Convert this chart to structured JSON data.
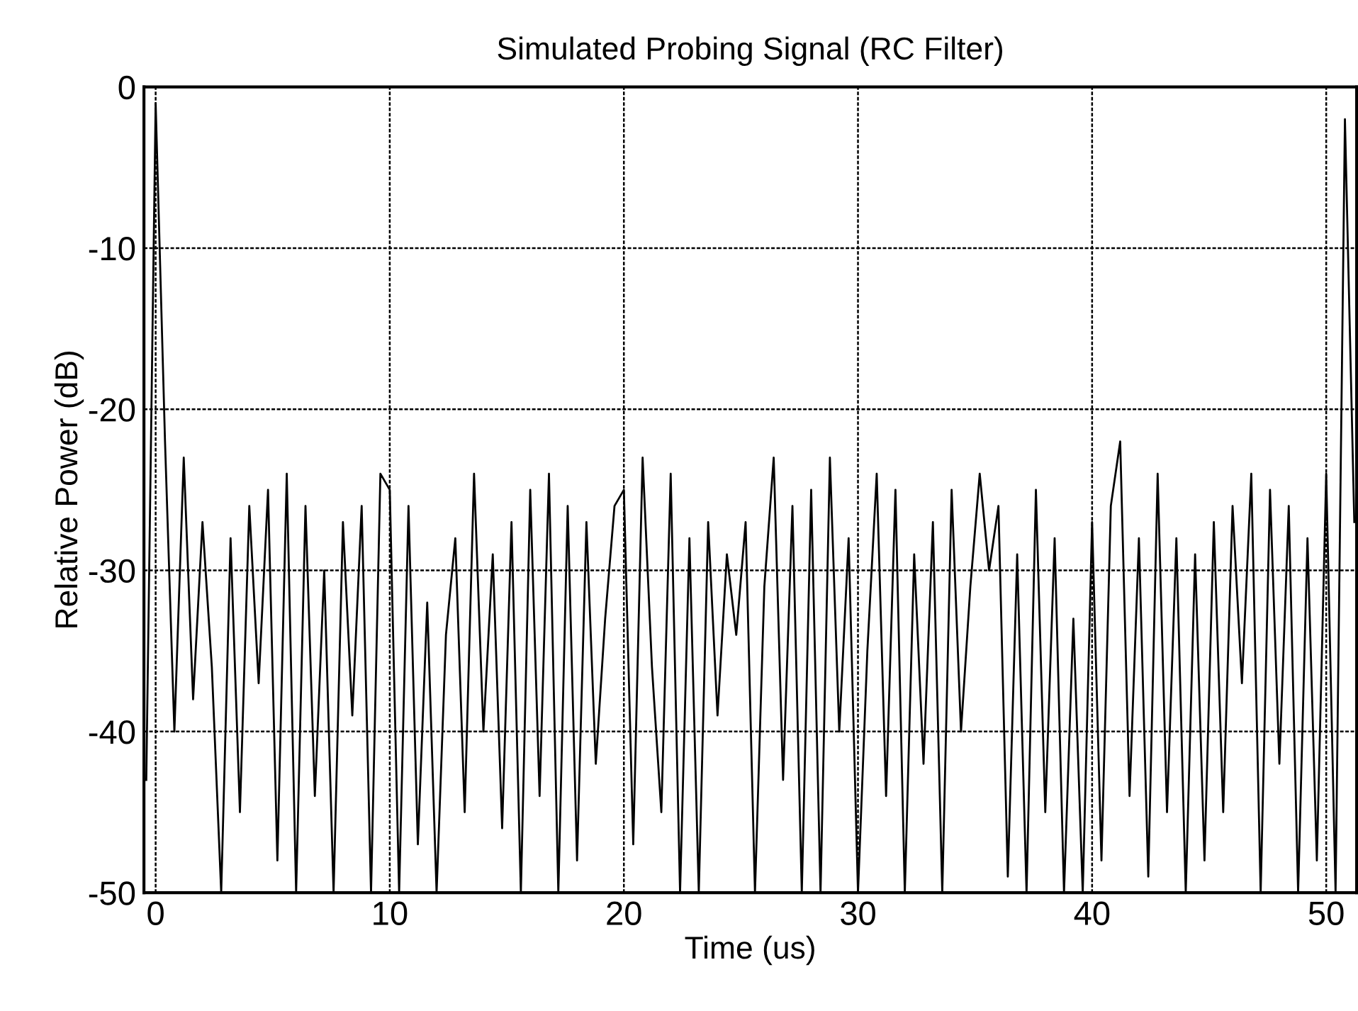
{
  "chart_data": {
    "type": "line",
    "title": "Simulated Probing Signal (RC Filter)",
    "xlabel": "Time (us)",
    "ylabel": "Relative Power (dB)",
    "xlim": [
      -0.5,
      51.3
    ],
    "ylim": [
      -50,
      0
    ],
    "xticks": [
      0,
      10,
      20,
      30,
      40,
      50
    ],
    "yticks": [
      -50,
      -40,
      -30,
      -20,
      -10,
      0
    ],
    "grid": true,
    "series": [
      {
        "color": "#000000",
        "x": [
          -0.4,
          0.0,
          0.4,
          0.8,
          1.2,
          1.6,
          2.0,
          2.4,
          2.8,
          3.2,
          3.6,
          4.0,
          4.4,
          4.8,
          5.2,
          5.6,
          6.0,
          6.4,
          6.8,
          7.2,
          7.6,
          8.0,
          8.4,
          8.8,
          9.2,
          9.6,
          10.0,
          10.4,
          10.8,
          11.2,
          11.6,
          12.0,
          12.4,
          12.8,
          13.2,
          13.6,
          14.0,
          14.4,
          14.8,
          15.2,
          15.6,
          16.0,
          16.4,
          16.8,
          17.2,
          17.6,
          18.0,
          18.4,
          18.8,
          19.2,
          19.6,
          20.0,
          20.4,
          20.8,
          21.2,
          21.6,
          22.0,
          22.4,
          22.8,
          23.2,
          23.6,
          24.0,
          24.4,
          24.8,
          25.2,
          25.6,
          26.0,
          26.4,
          26.8,
          27.2,
          27.6,
          28.0,
          28.4,
          28.8,
          29.2,
          29.6,
          30.0,
          30.4,
          30.8,
          31.2,
          31.6,
          32.0,
          32.4,
          32.8,
          33.2,
          33.6,
          34.0,
          34.4,
          34.8,
          35.2,
          35.6,
          36.0,
          36.4,
          36.8,
          37.2,
          37.6,
          38.0,
          38.4,
          38.8,
          39.2,
          39.6,
          40.0,
          40.4,
          40.8,
          41.2,
          41.6,
          42.0,
          42.4,
          42.8,
          43.2,
          43.6,
          44.0,
          44.4,
          44.8,
          45.2,
          45.6,
          46.0,
          46.4,
          46.8,
          47.2,
          47.6,
          48.0,
          48.4,
          48.8,
          49.2,
          49.6,
          50.0,
          50.4,
          50.8,
          51.2
        ],
        "values": [
          -43,
          -1,
          -22,
          -40,
          -23,
          -38,
          -27,
          -36,
          -50,
          -28,
          -45,
          -26,
          -37,
          -25,
          -48,
          -24,
          -50,
          -26,
          -44,
          -30,
          -50,
          -27,
          -39,
          -26,
          -50,
          -24,
          -25,
          -50,
          -26,
          -47,
          -32,
          -50,
          -34,
          -28,
          -45,
          -24,
          -40,
          -29,
          -46,
          -27,
          -50,
          -25,
          -44,
          -24,
          -50,
          -26,
          -48,
          -27,
          -42,
          -33,
          -26,
          -25,
          -47,
          -23,
          -36,
          -45,
          -24,
          -50,
          -28,
          -50,
          -27,
          -39,
          -29,
          -34,
          -27,
          -50,
          -31,
          -23,
          -43,
          -26,
          -50,
          -25,
          -50,
          -23,
          -40,
          -28,
          -50,
          -35,
          -24,
          -44,
          -25,
          -50,
          -29,
          -42,
          -27,
          -50,
          -25,
          -40,
          -31,
          -24,
          -30,
          -26,
          -49,
          -29,
          -50,
          -25,
          -45,
          -28,
          -50,
          -33,
          -50,
          -27,
          -48,
          -26,
          -22,
          -44,
          -28,
          -49,
          -24,
          -45,
          -28,
          -50,
          -29,
          -48,
          -27,
          -45,
          -26,
          -37,
          -24,
          -50,
          -25,
          -42,
          -26,
          -50,
          -28,
          -48,
          -24,
          -50,
          -2,
          -27
        ]
      }
    ]
  }
}
